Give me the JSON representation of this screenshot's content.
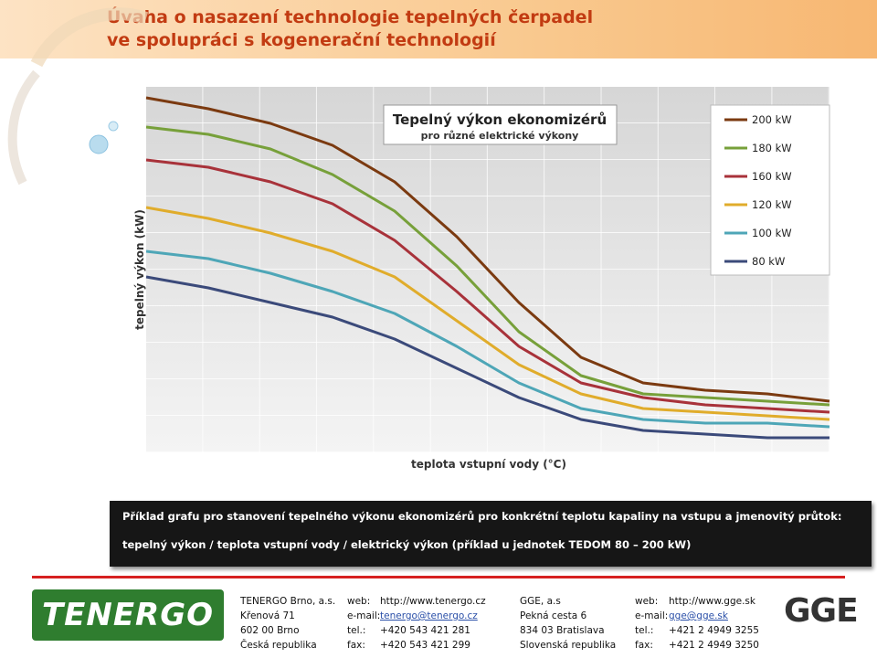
{
  "slide": {
    "title": [
      "Úvaha o nasazení technologie tepelných čerpadel",
      "ve spolupráci s kogenerační technologií"
    ]
  },
  "chart_data": {
    "type": "line",
    "title": "Tepelný výkon ekonomizérů",
    "subtitle": "pro různé elektrické výkony",
    "x_label": "teplota vstupní vody (°C)",
    "y_label": "tepelný výkon (kW)",
    "ylim": [
      0,
      100
    ],
    "categories": [
      null,
      null,
      null,
      null,
      null,
      null,
      null,
      null,
      null,
      null,
      null,
      null
    ],
    "series": [
      {
        "name": "200 kW",
        "color": "#7b3a10",
        "values": [
          97,
          94,
          90,
          84,
          74,
          59,
          41,
          26,
          19,
          17,
          16,
          14
        ]
      },
      {
        "name": "180 kW",
        "color": "#77a03a",
        "values": [
          89,
          87,
          83,
          76,
          66,
          51,
          33,
          21,
          16,
          15,
          14,
          13
        ]
      },
      {
        "name": "160 kW",
        "color": "#a8323a",
        "values": [
          80,
          78,
          74,
          68,
          58,
          44,
          29,
          19,
          15,
          13,
          12,
          11
        ]
      },
      {
        "name": "120 kW",
        "color": "#e0ac2b",
        "values": [
          67,
          64,
          60,
          55,
          48,
          36,
          24,
          16,
          12,
          11,
          10,
          9
        ]
      },
      {
        "name": "100 kW",
        "color": "#4ea6b7",
        "values": [
          55,
          53,
          49,
          44,
          38,
          29,
          19,
          12,
          9,
          8,
          8,
          7
        ]
      },
      {
        "name": "80 kW",
        "color": "#3b4a7a",
        "values": [
          48,
          45,
          41,
          37,
          31,
          23,
          15,
          9,
          6,
          5,
          4,
          4
        ]
      }
    ]
  },
  "note": [
    "Příklad grafu pro stanovení tepelného výkonu ekonomizérů pro konkrétní teplotu kapaliny na vstupu a jmenovitý průtok:",
    "tepelný výkon / teplota vstupní vody / elektrický výkon (příklad u jednotek TEDOM 80 – 200 kW)"
  ],
  "footer": {
    "logos": [
      "TENERGO",
      "GGE"
    ],
    "company1": [
      "TENERGO Brno, a.s.",
      "Křenová 71",
      "602 00 Brno",
      "Česká republika"
    ],
    "contact_labels1": [
      "web:",
      "e-mail:",
      "tel.:",
      "fax:"
    ],
    "contact1": [
      "http://www.tenergo.cz",
      "tenergo@tenergo.cz",
      "+420 543 421 281",
      "+420 543 421 299"
    ],
    "company2": [
      "GGE, a.s",
      "Pekná cesta 6",
      "834 03 Bratislava",
      "Slovenská republika"
    ],
    "contact_labels2": [
      "web:",
      "e-mail:",
      "tel.:",
      "fax:"
    ],
    "contact2": [
      "http://www.gge.sk",
      "gge@gge.sk",
      "+421 2 4949 3255",
      "+421 2 4949 3250"
    ]
  }
}
